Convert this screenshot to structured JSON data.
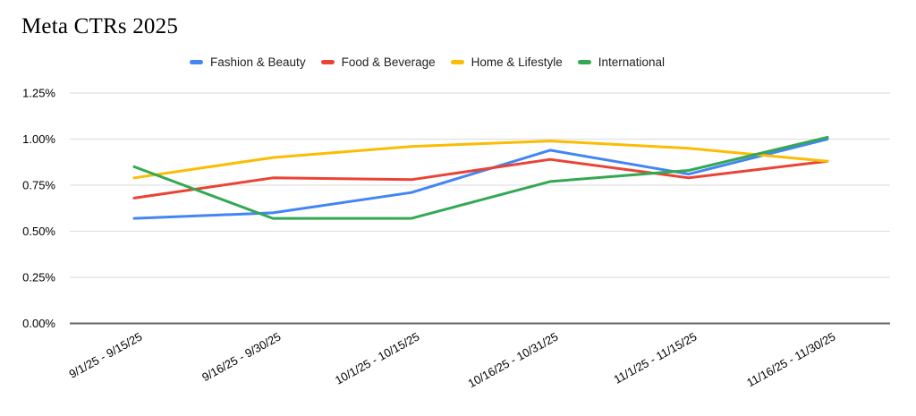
{
  "title": "Meta CTRs 2025",
  "chart_data": {
    "type": "line",
    "title": "Meta CTRs 2025",
    "categories": [
      "9/1/25 - 9/15/25",
      "9/16/25 - 9/30/25",
      "10/1/25 - 10/15/25",
      "10/16/25 - 10/31/25",
      "11/1/25 - 11/15/25",
      "11/16/25 - 11/30/25"
    ],
    "series": [
      {
        "name": "Fashion & Beauty",
        "color": "#4285F4",
        "values": [
          0.57,
          0.6,
          0.71,
          0.94,
          0.81,
          1.0
        ]
      },
      {
        "name": "Food & Beverage",
        "color": "#EA4335",
        "values": [
          0.68,
          0.79,
          0.78,
          0.89,
          0.79,
          0.88
        ]
      },
      {
        "name": "Home & Lifestyle",
        "color": "#FBBC04",
        "values": [
          0.79,
          0.9,
          0.96,
          0.99,
          0.95,
          0.88
        ]
      },
      {
        "name": "International",
        "color": "#34A853",
        "values": [
          0.85,
          0.57,
          0.57,
          0.77,
          0.83,
          1.01
        ]
      }
    ],
    "y_tick_labels": [
      "1.25%",
      "1.00%",
      "0.75%",
      "0.50%",
      "0.25%",
      "0.00%"
    ],
    "ylim": [
      0,
      1.25
    ],
    "unit": "%",
    "grid": true,
    "legend_position": "top",
    "colors": {
      "gridline": "#e0e0e0",
      "zero_axis": "#666666",
      "tick_text": "#000000",
      "title_text": "#000000"
    }
  }
}
